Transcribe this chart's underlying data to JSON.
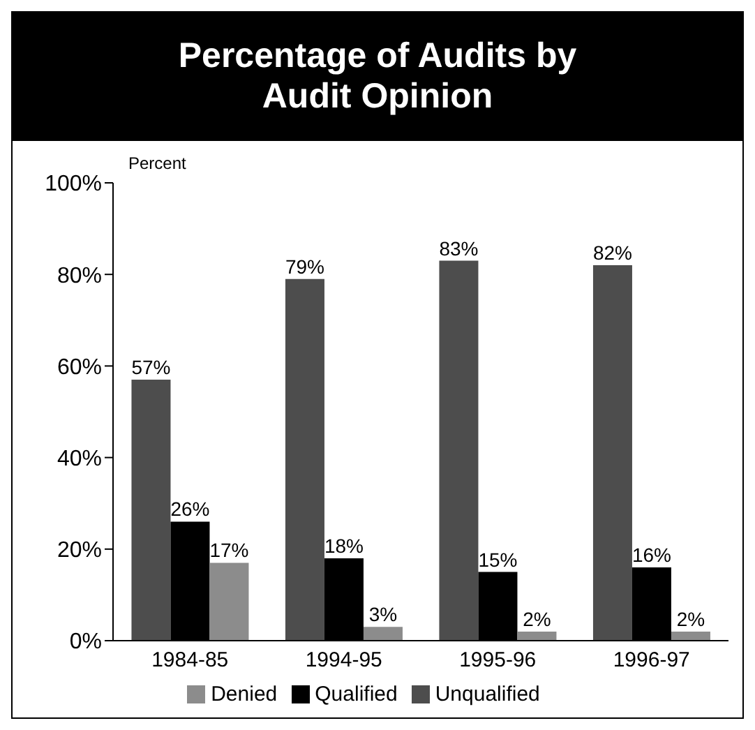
{
  "chart_data": {
    "type": "bar",
    "title": "Percentage of Audits by Audit Opinion",
    "ylabel": "Percent",
    "categories": [
      "1984-85",
      "1994-95",
      "1995-96",
      "1996-97"
    ],
    "series": [
      {
        "name": "Unqualified",
        "color": "#4d4d4d",
        "values": [
          57,
          79,
          83,
          82
        ],
        "value_labels": [
          "57%",
          "79%",
          "83%",
          "82%"
        ]
      },
      {
        "name": "Qualified",
        "color": "#000000",
        "values": [
          26,
          18,
          15,
          16
        ],
        "value_labels": [
          "26%",
          "18%",
          "15%",
          "16%"
        ]
      },
      {
        "name": "Denied",
        "color": "#8c8c8c",
        "values": [
          17,
          3,
          2,
          2
        ],
        "value_labels": [
          "17%",
          "3%",
          "2%",
          "2%"
        ]
      }
    ],
    "ylim": [
      0,
      100
    ],
    "yticks": [
      {
        "value": 0,
        "label": "0%"
      },
      {
        "value": 20,
        "label": "20%"
      },
      {
        "value": 40,
        "label": "40%"
      },
      {
        "value": 60,
        "label": "60%"
      },
      {
        "value": 80,
        "label": "80%"
      },
      {
        "value": 100,
        "label": "100%"
      }
    ],
    "grid": false,
    "legend": "bottom"
  }
}
